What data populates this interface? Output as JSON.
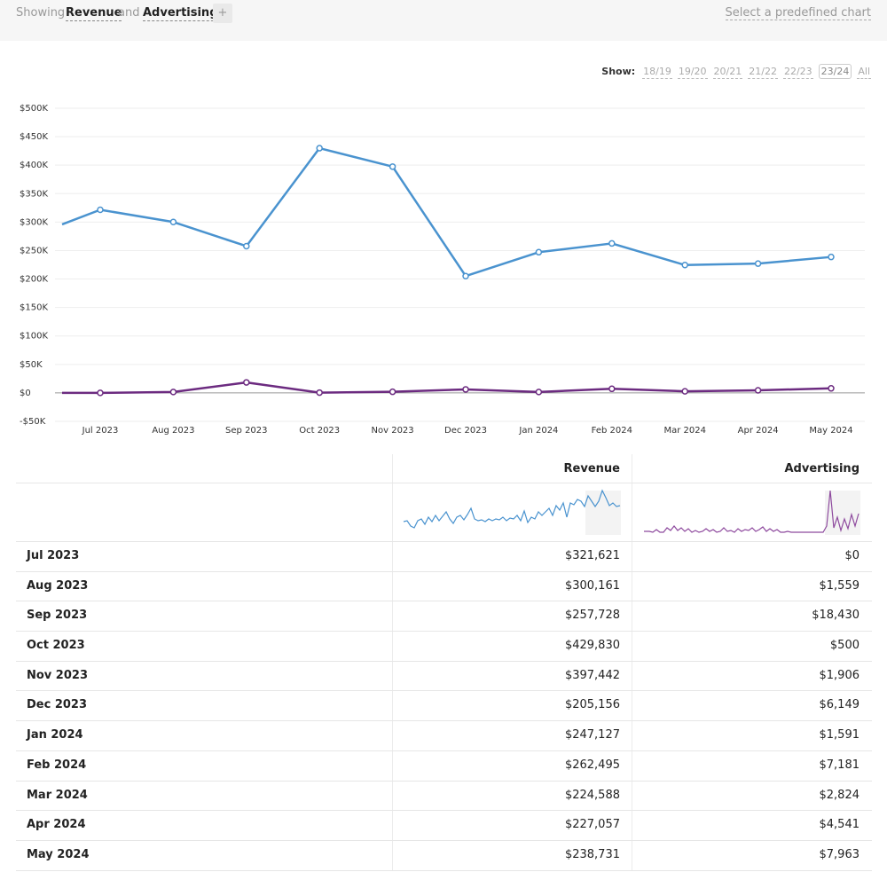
{
  "header": {
    "showing": "Showing",
    "metric1": "Revenue",
    "and": "and",
    "metric2": "Advertising",
    "add": "+",
    "predefined": "Select a predefined chart"
  },
  "periods": {
    "label": "Show:",
    "options": [
      "18/19",
      "19/20",
      "20/21",
      "21/22",
      "22/23",
      "23/24",
      "All"
    ],
    "selected": 5
  },
  "chart_data": {
    "type": "line",
    "categories": [
      null,
      "Jul 2023",
      "Aug 2023",
      "Sep 2023",
      "Oct 2023",
      "Nov 2023",
      "Dec 2023",
      "Jan 2024",
      "Feb 2024",
      "Mar 2024",
      "Apr 2024",
      "May 2024"
    ],
    "series": [
      {
        "name": "Revenue",
        "color": "#4a93cf",
        "values": [
          296000,
          321621,
          300161,
          257728,
          429830,
          397442,
          205156,
          247127,
          262495,
          224588,
          227057,
          238731
        ]
      },
      {
        "name": "Advertising",
        "color": "#6c2b80",
        "values": [
          0,
          0,
          1559,
          18430,
          500,
          1906,
          6149,
          1591,
          7181,
          2824,
          4541,
          7963
        ]
      }
    ],
    "ylim": [
      -50000,
      500000
    ],
    "yticks": [
      {
        "value": -50000,
        "label": "-$50K"
      },
      {
        "value": 0,
        "label": "$0"
      },
      {
        "value": 50000,
        "label": "$50K"
      },
      {
        "value": 100000,
        "label": "$100K"
      },
      {
        "value": 150000,
        "label": "$150K"
      },
      {
        "value": 200000,
        "label": "$200K"
      },
      {
        "value": 250000,
        "label": "$250K"
      },
      {
        "value": 300000,
        "label": "$300K"
      },
      {
        "value": 350000,
        "label": "$350K"
      },
      {
        "value": 400000,
        "label": "$400K"
      },
      {
        "value": 450000,
        "label": "$450K"
      },
      {
        "value": 500000,
        "label": "$500K"
      }
    ],
    "grid": true
  },
  "table": {
    "columns": [
      "Revenue",
      "Advertising"
    ],
    "rows": [
      [
        "Jul 2023",
        "$321,621",
        "$0"
      ],
      [
        "Aug 2023",
        "$300,161",
        "$1,559"
      ],
      [
        "Sep 2023",
        "$257,728",
        "$18,430"
      ],
      [
        "Oct 2023",
        "$429,830",
        "$500"
      ],
      [
        "Nov 2023",
        "$397,442",
        "$1,906"
      ],
      [
        "Dec 2023",
        "$205,156",
        "$6,149"
      ],
      [
        "Jan 2024",
        "$247,127",
        "$1,591"
      ],
      [
        "Feb 2024",
        "$262,495",
        "$7,181"
      ],
      [
        "Mar 2024",
        "$224,588",
        "$2,824"
      ],
      [
        "Apr 2024",
        "$227,057",
        "$4,541"
      ],
      [
        "May 2024",
        "$238,731",
        "$7,963"
      ]
    ]
  }
}
